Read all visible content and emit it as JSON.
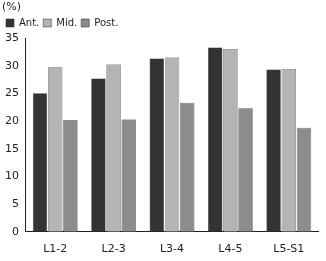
{
  "chart_data": {
    "type": "bar",
    "ylabel": "(%)",
    "categories": [
      "L1-2",
      "L2-3",
      "L3-4",
      "L4-5",
      "L5-S1"
    ],
    "series": [
      {
        "name": "Ant.",
        "color": "#333333",
        "values": [
          25,
          27.7,
          31.3,
          33.3,
          29.3
        ]
      },
      {
        "name": "Mid.",
        "color": "#b4b4b4",
        "values": [
          29.7,
          30.2,
          31.5,
          33,
          29.4
        ]
      },
      {
        "name": "Post.",
        "color": "#8c8c8c",
        "values": [
          20.2,
          20.3,
          23.3,
          22.3,
          18.8
        ]
      }
    ],
    "ylim": [
      0,
      35
    ],
    "yticks": [
      0,
      5,
      10,
      15,
      20,
      25,
      30,
      35
    ],
    "grid": false,
    "legend": "top"
  }
}
